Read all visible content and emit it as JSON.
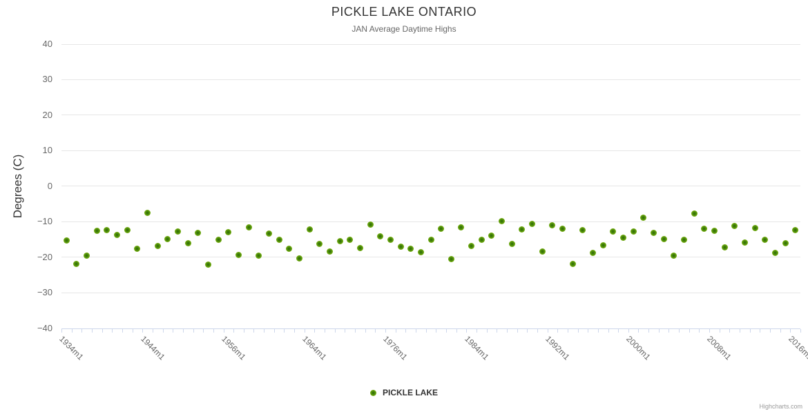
{
  "chart": {
    "title": "PICKLE LAKE ONTARIO",
    "subtitle": "JAN Average Daytime Highs",
    "credits": "Highcharts.com"
  },
  "legend": {
    "label": "PICKLE LAKE"
  },
  "colors": {
    "point_outer": "#8ac823",
    "point_inner": "#2f6b02",
    "gridline": "#e6e6e6",
    "axis_line": "#ccd6eb",
    "title_text": "#333333",
    "secondary_text": "#666666",
    "credits_text": "#999999"
  },
  "chart_data": {
    "type": "scatter",
    "title": "PICKLE LAKE ONTARIO",
    "subtitle": "JAN Average Daytime Highs",
    "xlabel": "",
    "ylabel": "Degrees (C)",
    "ylim": [
      -40,
      40
    ],
    "y_ticks": [
      40,
      30,
      20,
      10,
      0,
      -10,
      -20,
      -30,
      -40
    ],
    "y_tick_labels": [
      "40",
      "30",
      "20",
      "10",
      "0",
      "−10",
      "−20",
      "−30",
      "−40"
    ],
    "x_tick_labels": [
      "1934m1",
      "1944m1",
      "1956m1",
      "1964m1",
      "1976m1",
      "1984m1",
      "1992m1",
      "2000m1",
      "2008m1",
      "2016m1"
    ],
    "x_tick_indices": [
      0,
      8,
      16,
      24,
      32,
      40,
      48,
      56,
      64,
      72
    ],
    "grid": "horizontal",
    "legend_position": "bottom",
    "series": [
      {
        "name": "PICKLE LAKE",
        "color": "#7db31c",
        "values": [
          -15.4,
          -21.9,
          -19.6,
          -12.6,
          -12.3,
          -13.8,
          -12.3,
          -17.7,
          -7.5,
          -16.8,
          -14.9,
          -12.8,
          -16.1,
          -13.2,
          -22.2,
          -15.2,
          -12.9,
          -19.3,
          -11.7,
          -19.6,
          -13.4,
          -15.1,
          -17.6,
          -20.4,
          -12.2,
          -16.2,
          -18.5,
          -15.5,
          -15.2,
          -17.4,
          -10.9,
          -14.2,
          -15.1,
          -17.1,
          -17.6,
          -18.6,
          -15.1,
          -12.0,
          -20.6,
          -11.6,
          -16.8,
          -15.1,
          -13.9,
          -9.9,
          -16.2,
          -12.2,
          -10.7,
          -18.4,
          -11.1,
          -12.1,
          -21.9,
          -12.4,
          -18.8,
          -16.7,
          -12.8,
          -14.5,
          -12.7,
          -8.9,
          -13.2,
          -14.9,
          -19.5,
          -15.1,
          -7.7,
          -12.0,
          -12.5,
          -17.3,
          -11.3,
          -15.8,
          -11.8,
          -15.1,
          -18.9,
          -16.1,
          -12.4
        ]
      }
    ]
  }
}
